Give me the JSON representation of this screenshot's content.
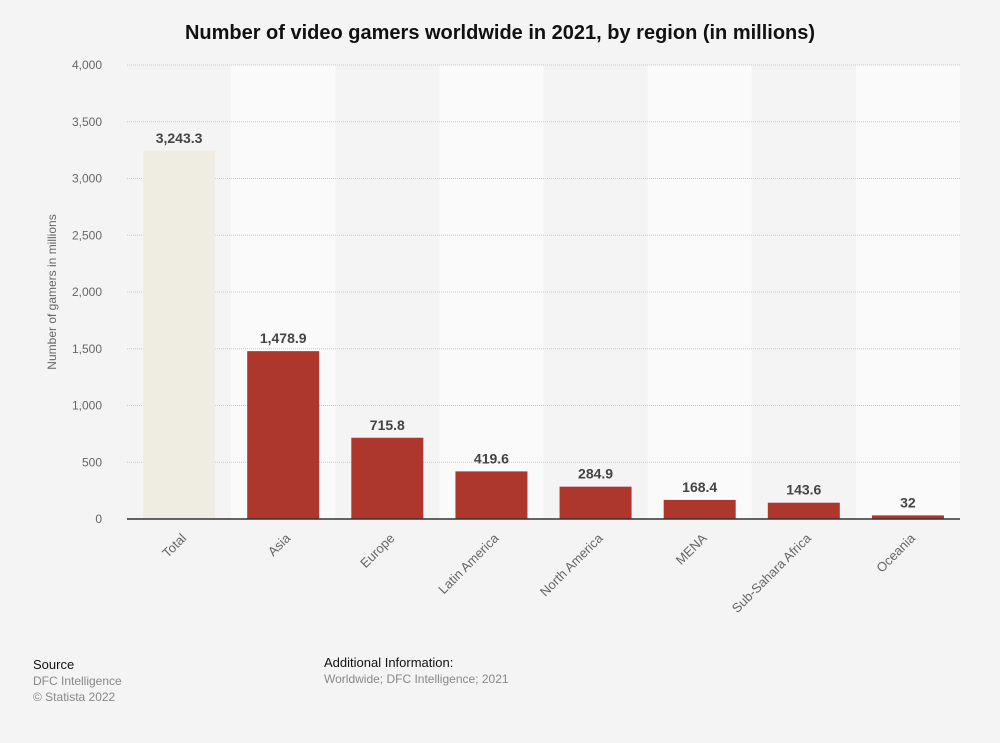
{
  "chart_data": {
    "type": "bar",
    "title": "Number of video gamers worldwide in 2021, by region (in millions)",
    "xlabel": "",
    "ylabel": "Number of gamers in millions",
    "categories": [
      "Total",
      "Asia",
      "Europe",
      "Latin America",
      "North America",
      "MENA",
      "Sub-Sahara Africa",
      "Oceania"
    ],
    "values": [
      3243.3,
      1478.9,
      715.8,
      419.6,
      284.9,
      168.4,
      143.6,
      32
    ],
    "value_labels": [
      "3,243.3",
      "1,478.9",
      "715.8",
      "419.6",
      "284.9",
      "168.4",
      "143.6",
      "32"
    ],
    "ylim": [
      0,
      4000
    ],
    "yticks": [
      0,
      500,
      1000,
      1500,
      2000,
      2500,
      3000,
      3500,
      4000
    ],
    "ytick_labels": [
      "0",
      "500",
      "1,000",
      "1,500",
      "2,000",
      "2,500",
      "3,000",
      "3,500",
      "4,000"
    ],
    "grid": true,
    "colors": {
      "total": "#efede2",
      "bar": "#ae372d",
      "background": "#f4f4f4",
      "stripe": "#fafafa"
    }
  },
  "footer": {
    "source_heading": "Source",
    "source": "DFC Intelligence",
    "copyright": "© Statista 2022",
    "additional_heading": "Additional Information:",
    "additional": "Worldwide; DFC Intelligence; 2021"
  }
}
